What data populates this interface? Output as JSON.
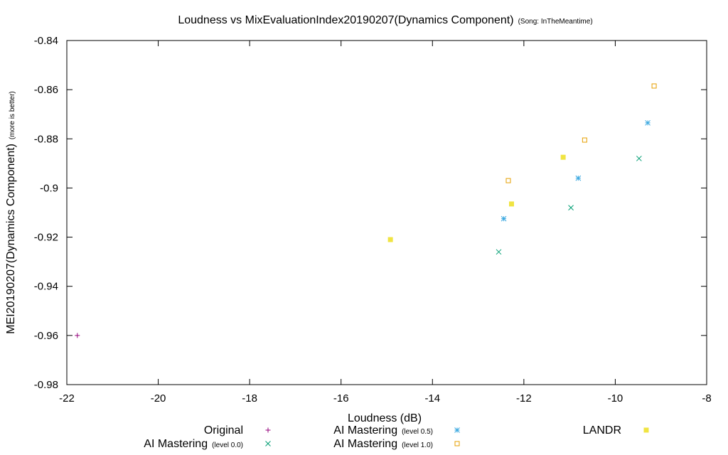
{
  "chart_data": {
    "type": "scatter",
    "title": "Loudness vs MixEvaluationIndex20190207(Dynamics Component)",
    "subtitle": "(Song: InTheMeantime)",
    "xlabel": "Loudness (dB)",
    "ylabel": "MEI20190207(Dynamics Component)",
    "ylabel_note": "(more is better)",
    "xlim": [
      -22,
      -8
    ],
    "ylim": [
      -0.98,
      -0.84
    ],
    "x_ticks": [
      -22,
      -20,
      -18,
      -16,
      -14,
      -12,
      -10,
      -8
    ],
    "x_tick_labels": [
      "-22",
      "-20",
      "-18",
      "-16",
      "-14",
      "-12",
      "-10",
      "-8"
    ],
    "y_ticks": [
      -0.98,
      -0.96,
      -0.94,
      -0.92,
      -0.9,
      -0.88,
      -0.86,
      -0.84
    ],
    "y_tick_labels": [
      "-0.98",
      "-0.96",
      "-0.94",
      "-0.92",
      "-0.9",
      "-0.88",
      "-0.86",
      "-0.84"
    ],
    "grid": false,
    "legend_position": "bottom",
    "series": [
      {
        "name": "Original",
        "level": "",
        "marker": "plus",
        "color": "#94007b",
        "points": [
          {
            "x": -21.77,
            "y": -0.96
          }
        ]
      },
      {
        "name": "AI Mastering",
        "level": "(level 0.0)",
        "marker": "cross",
        "color": "#009e73",
        "points": [
          {
            "x": -12.55,
            "y": -0.926
          },
          {
            "x": -10.97,
            "y": -0.908
          },
          {
            "x": -9.48,
            "y": -0.888
          }
        ]
      },
      {
        "name": "AI Mastering",
        "level": "(level 0.5)",
        "marker": "star",
        "color": "#3aa8e0",
        "points": [
          {
            "x": -12.44,
            "y": -0.9125
          },
          {
            "x": -10.81,
            "y": -0.896
          },
          {
            "x": -9.29,
            "y": -0.8735
          }
        ]
      },
      {
        "name": "AI Mastering",
        "level": "(level 1.0)",
        "marker": "open-square",
        "color": "#e69f00",
        "points": [
          {
            "x": -12.34,
            "y": -0.897
          },
          {
            "x": -10.67,
            "y": -0.8805
          },
          {
            "x": -9.15,
            "y": -0.8585
          }
        ]
      },
      {
        "name": "LANDR",
        "level": "",
        "marker": "filled-square",
        "color": "#f0e442",
        "points": [
          {
            "x": -14.92,
            "y": -0.921
          },
          {
            "x": -12.27,
            "y": -0.9065
          },
          {
            "x": -11.14,
            "y": -0.8875
          }
        ]
      }
    ]
  }
}
